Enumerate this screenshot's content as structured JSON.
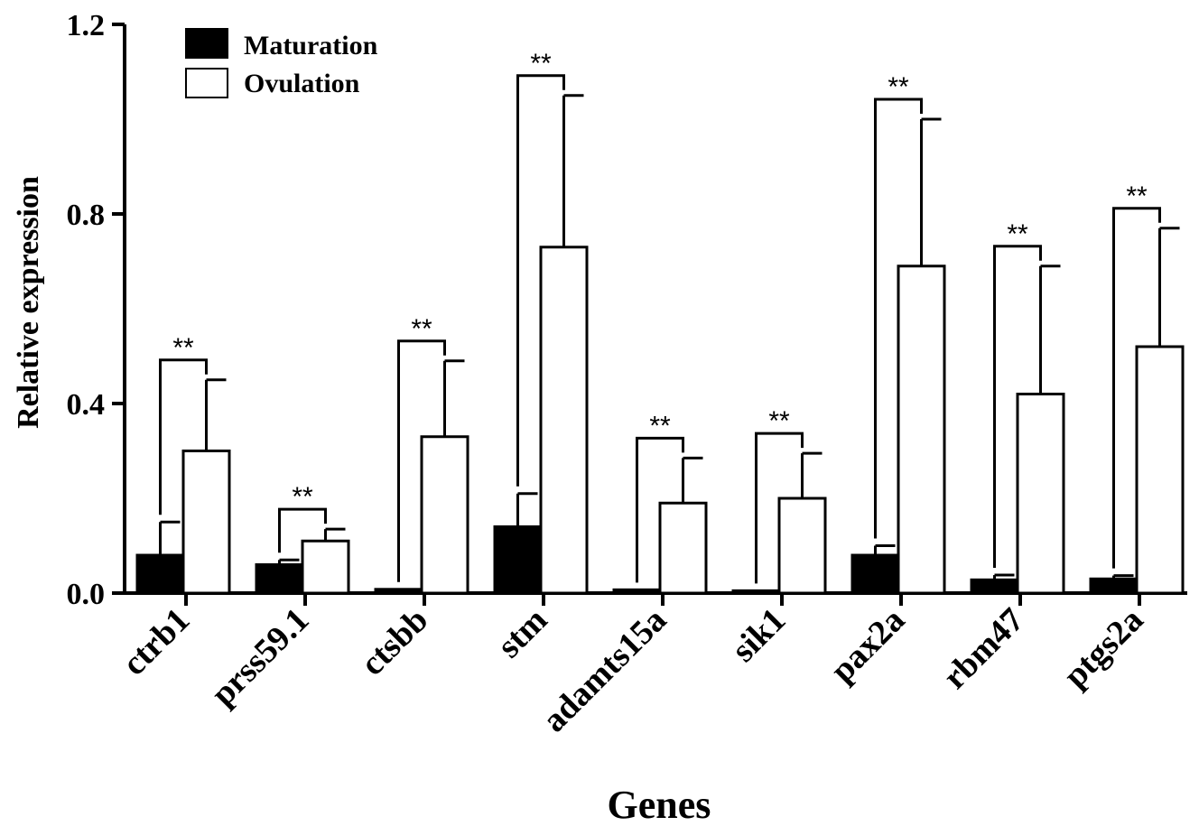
{
  "chart_data": {
    "type": "bar",
    "xlabel": "Genes",
    "ylabel": "Relative expression",
    "ylim": [
      0,
      1.2
    ],
    "yticks": [
      "0.0",
      "0.4",
      "0.8",
      "1.2"
    ],
    "ytick_values": [
      0,
      0.4,
      0.8,
      1.2
    ],
    "grid": false,
    "legend_position": "top-left",
    "categories": [
      "ctrb1",
      "prss59.1",
      "ctsbb",
      "stm",
      "adamts15a",
      "sik1",
      "pax2a",
      "rbm47",
      "ptgs2a"
    ],
    "series": [
      {
        "name": "Maturation",
        "fill": "#000000",
        "values": [
          0.08,
          0.06,
          0.008,
          0.14,
          0.007,
          0.005,
          0.08,
          0.028,
          0.03
        ],
        "errors": [
          0.07,
          0.01,
          0.0,
          0.07,
          0.0,
          0.0,
          0.02,
          0.01,
          0.007
        ]
      },
      {
        "name": "Ovulation",
        "fill": "#ffffff",
        "values": [
          0.3,
          0.11,
          0.33,
          0.73,
          0.19,
          0.2,
          0.69,
          0.42,
          0.52
        ],
        "errors": [
          0.15,
          0.025,
          0.16,
          0.32,
          0.095,
          0.095,
          0.31,
          0.27,
          0.25
        ]
      }
    ],
    "significance": [
      "**",
      "**",
      "**",
      "**",
      "**",
      "**",
      "**",
      "**",
      "**"
    ]
  }
}
